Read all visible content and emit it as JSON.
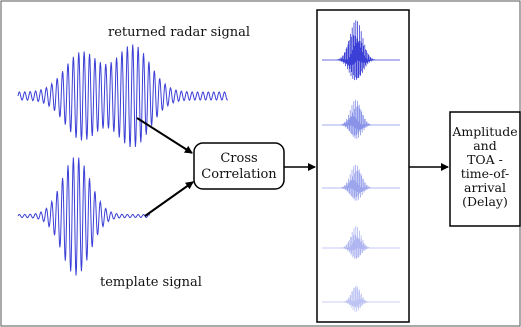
{
  "diagram": {
    "returned_label": "returned radar signal",
    "template_label": "template signal",
    "cross_correlation": [
      "Cross",
      "Correlation"
    ],
    "output": [
      "Amplitude",
      "and",
      "TOA -",
      "time-of-",
      "arrival",
      "(Delay)"
    ]
  },
  "colors": {
    "waveform": "#3b3fd6",
    "correlation_outputs": "#7c87e6",
    "stroke": "#000000"
  }
}
